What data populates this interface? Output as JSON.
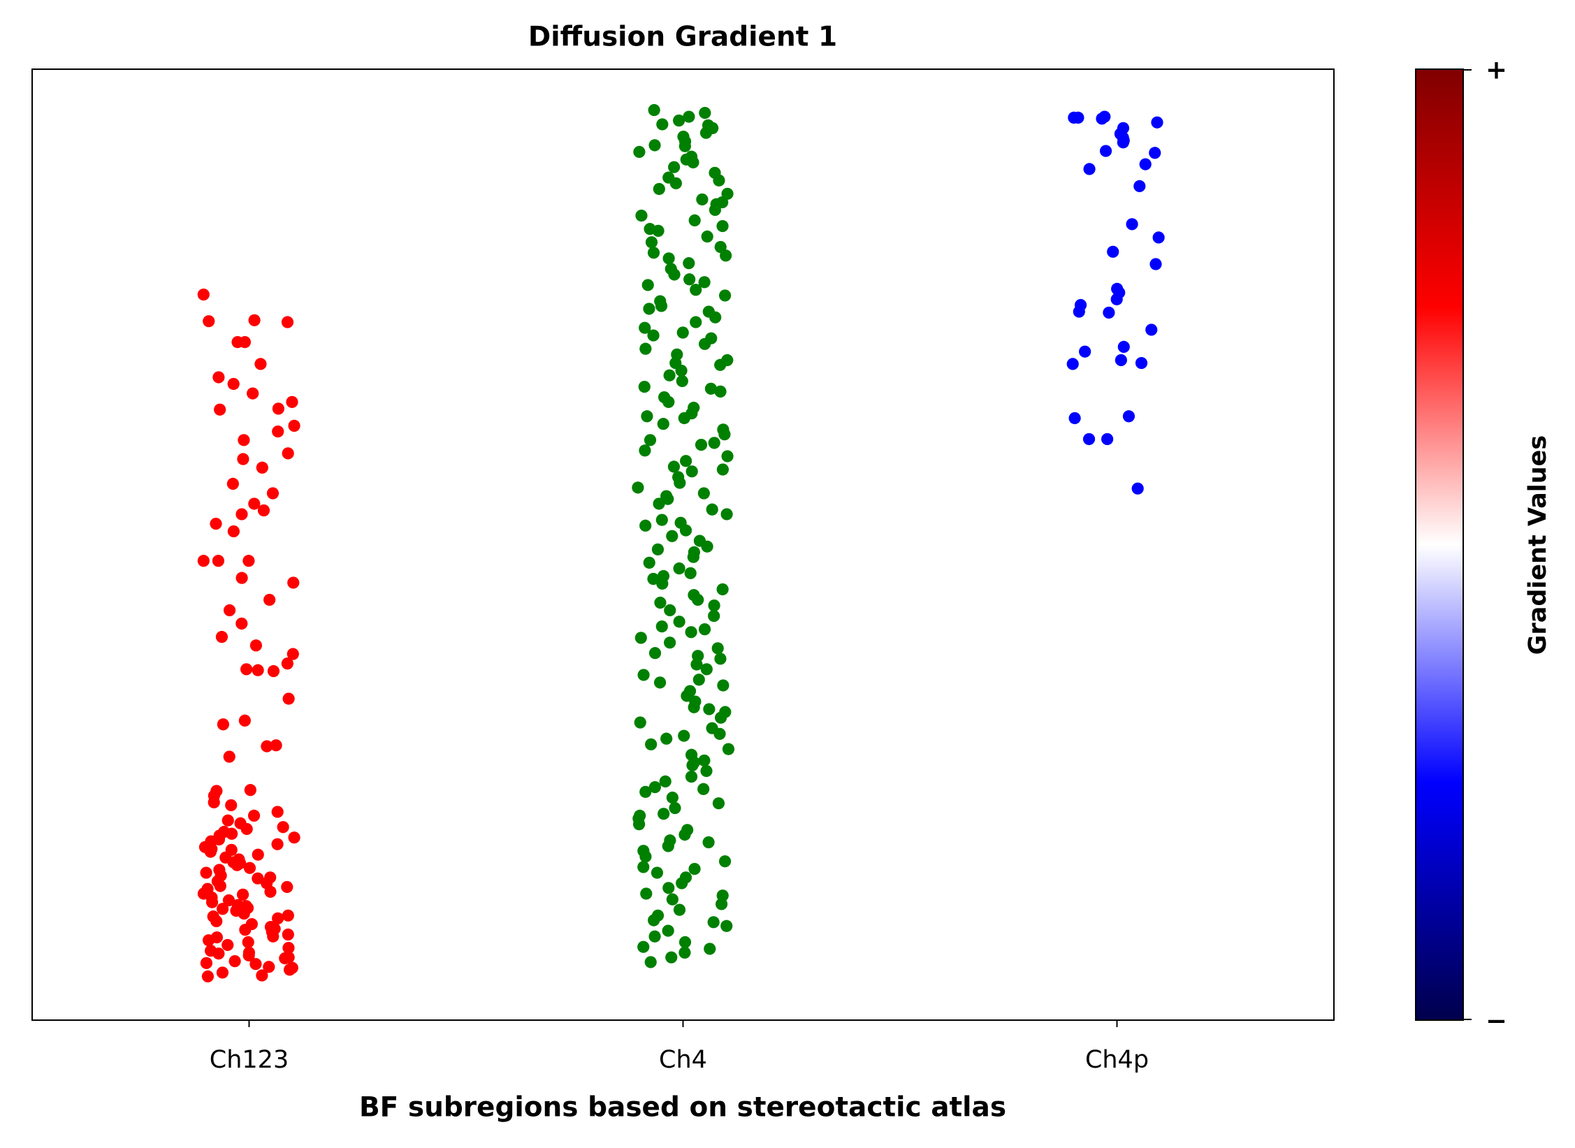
{
  "chart_data": {
    "type": "strip",
    "title": "Diffusion Gradient 1",
    "x_label": "BF subregions based on stereotactic atlas",
    "categories": [
      "Ch123",
      "Ch4",
      "Ch4p"
    ],
    "colors": [
      "#ff0000",
      "#008000",
      "#0000ff"
    ],
    "ylim": [
      0,
      100
    ],
    "values": [
      [
        76.3,
        73.4,
        73.5,
        73.6,
        71.3,
        71.3,
        69.0,
        67.6,
        66.9,
        65.9,
        65.0,
        64.3,
        64.2,
        62.5,
        61.9,
        61.0,
        59.6,
        59.0,
        58.1,
        56.4,
        55.4,
        54.3,
        53.6,
        53.2,
        52.2,
        51.4,
        48.3,
        48.3,
        48.3,
        46.5,
        46.0,
        44.2,
        43.1,
        41.7,
        40.3,
        39.4,
        38.5,
        37.5,
        36.9,
        36.7,
        36.8,
        33.8,
        31.5,
        31.1,
        28.8,
        28.9,
        27.7,
        24.2,
        24.1,
        22.9,
        22.6,
        23.6,
        21.9,
        21.5,
        20.7,
        20.3,
        20.1,
        19.8,
        19.6,
        19.4,
        19.0,
        18.8,
        18.5,
        18.2,
        18.0,
        17.7,
        17.4,
        17.1,
        16.9,
        16.6,
        16.3,
        16.0,
        15.8,
        15.5,
        15.2,
        14.9,
        14.6,
        14.4,
        14.1,
        13.8,
        13.5,
        13.2,
        12.9,
        12.6,
        12.4,
        12.1,
        11.8,
        11.5,
        11.2,
        11.0,
        10.7,
        10.4,
        10.1,
        9.8,
        9.6,
        9.3,
        9.0,
        8.7,
        8.4,
        8.2,
        7.9,
        7.6,
        7.3,
        7.0,
        6.8,
        6.5,
        6.2,
        5.9,
        5.6,
        5.3,
        5.0,
        4.7,
        4.6,
        6.0,
        7.1,
        9.5,
        12.0,
        14.0,
        16.5,
        19.2,
        21.0,
        8.8,
        5.5,
        10.9,
        13.3,
        15.0,
        17.9,
        11.7,
        6.6
      ],
      [
        95.7,
        95.4,
        95.0,
        94.6,
        94.2,
        93.8,
        93.3,
        92.9,
        92.4,
        91.9,
        91.3,
        90.8,
        90.2,
        89.7,
        89.1,
        88.6,
        88.0,
        87.4,
        86.9,
        86.3,
        85.8,
        85.2,
        84.6,
        84.1,
        83.5,
        83.0,
        82.4,
        81.8,
        81.3,
        80.7,
        80.1,
        79.6,
        79.0,
        78.4,
        77.9,
        77.3,
        76.8,
        76.2,
        75.6,
        75.1,
        74.5,
        73.9,
        73.4,
        72.8,
        72.3,
        71.7,
        71.1,
        70.6,
        70.0,
        69.4,
        68.9,
        68.3,
        67.8,
        67.2,
        66.6,
        66.1,
        65.5,
        65.0,
        64.4,
        63.8,
        63.3,
        62.7,
        62.1,
        61.6,
        61.0,
        60.5,
        59.9,
        59.3,
        58.8,
        58.2,
        57.7,
        57.1,
        56.5,
        56.0,
        55.4,
        54.8,
        54.3,
        53.7,
        53.2,
        52.6,
        52.0,
        51.5,
        50.9,
        50.4,
        49.8,
        49.2,
        48.7,
        48.1,
        47.5,
        47.0,
        46.4,
        45.9,
        45.3,
        44.7,
        44.2,
        43.6,
        43.1,
        42.5,
        41.9,
        41.4,
        40.8,
        40.2,
        39.7,
        39.1,
        38.6,
        38.0,
        37.4,
        36.9,
        36.3,
        35.8,
        35.2,
        34.6,
        34.1,
        33.5,
        32.9,
        32.4,
        31.8,
        31.3,
        30.7,
        30.1,
        29.6,
        29.0,
        28.5,
        27.9,
        27.3,
        26.8,
        26.2,
        25.6,
        25.1,
        24.5,
        24.0,
        23.4,
        22.8,
        22.3,
        21.7,
        21.2,
        20.6,
        20.0,
        19.5,
        18.9,
        18.3,
        17.8,
        17.2,
        16.7,
        16.1,
        15.5,
        15.0,
        14.4,
        13.9,
        13.3,
        12.7,
        12.2,
        11.6,
        11.0,
        10.5,
        9.9,
        9.4,
        8.8,
        8.2,
        7.7,
        7.1,
        6.6,
        6.1,
        94.1,
        92.0,
        90.5,
        88.3,
        86.0,
        83.2,
        80.4,
        77.6,
        74.8,
        72.0,
        69.1,
        66.4,
        63.5,
        60.7,
        57.9,
        55.1,
        52.3,
        49.5,
        46.7,
        43.9,
        41.1,
        38.3,
        35.5,
        32.7,
        29.9,
        27.1,
        24.3,
        21.5,
        18.7,
        15.9,
        13.1,
        10.3,
        7.5
      ],
      [
        94.9,
        94.9,
        95.0,
        94.8,
        94.4,
        93.2,
        93.8,
        92.8,
        92.5,
        92.3,
        91.4,
        91.2,
        90.0,
        89.5,
        87.7,
        83.7,
        82.3,
        80.8,
        79.5,
        76.9,
        76.5,
        75.8,
        75.2,
        74.5,
        74.4,
        72.6,
        70.8,
        70.3,
        69.4,
        69.1,
        69.0,
        63.5,
        63.3,
        61.1,
        61.1,
        55.9
      ]
    ],
    "colorbar": {
      "label": "Gradient Values",
      "top_label": "+",
      "bottom_label": "−",
      "colormap": [
        "#00004c",
        "#0000ff",
        "#ffffff",
        "#ff0000",
        "#800000"
      ]
    }
  }
}
